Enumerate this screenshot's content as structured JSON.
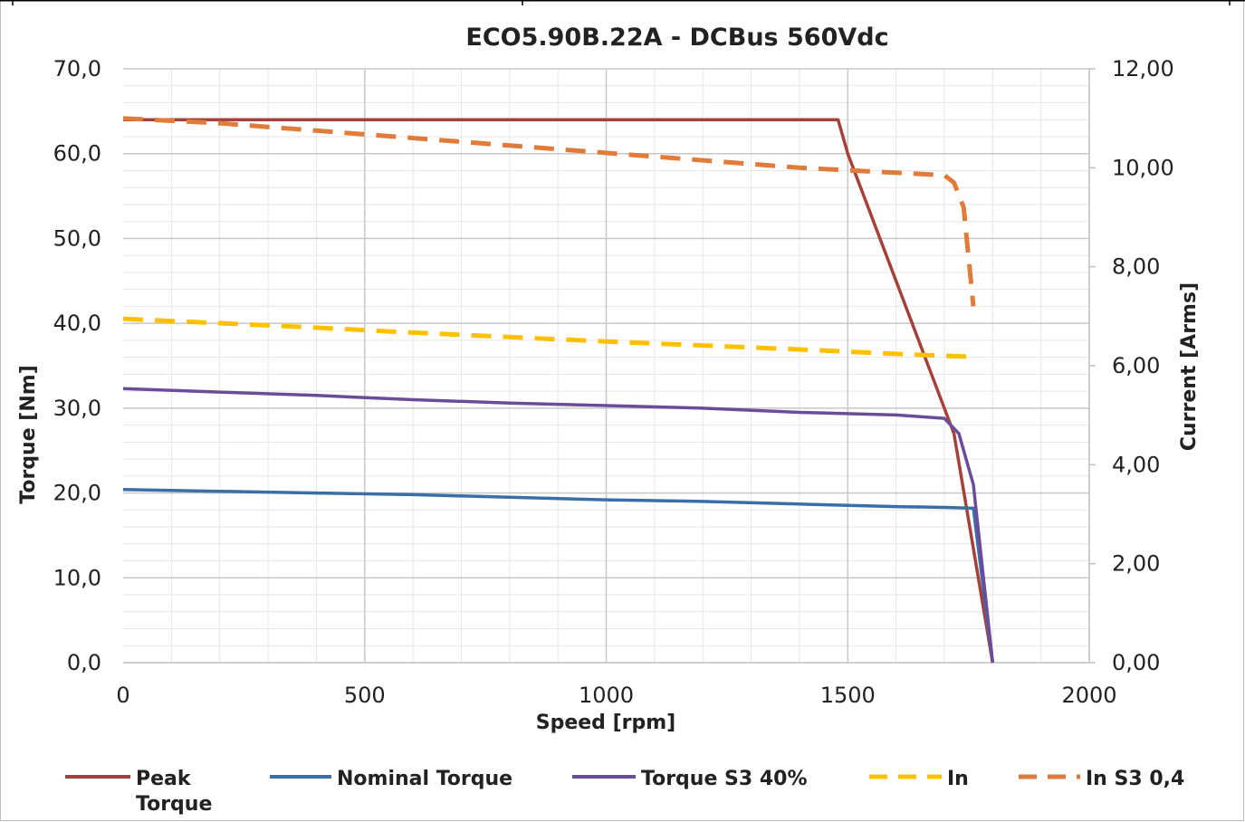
{
  "chart_data": {
    "type": "line",
    "title": "ECO5.90B.22A - DCBus 560Vdc",
    "xlabel": "Speed [rpm]",
    "ylabel": "Torque [Nm]",
    "y2label": "Current [Arms]",
    "xlim": [
      0,
      2000
    ],
    "ylim": [
      0,
      70
    ],
    "y2lim": [
      0,
      12
    ],
    "x_ticks": [
      "0",
      "500",
      "1000",
      "1500",
      "2000"
    ],
    "y_ticks": [
      "0,0",
      "10,0",
      "20,0",
      "30,0",
      "40,0",
      "50,0",
      "60,0",
      "70,0"
    ],
    "y2_ticks": [
      "0,00",
      "2,00",
      "4,00",
      "6,00",
      "8,00",
      "10,00",
      "12,00"
    ],
    "grid": true,
    "legend_position": "bottom",
    "series": [
      {
        "name": "Peak Torque",
        "legend_lines": [
          "Peak",
          "Torque"
        ],
        "axis": "left",
        "color": "#a5403b",
        "dash": "solid",
        "x": [
          0,
          1480,
          1500,
          1720,
          1800
        ],
        "y": [
          64,
          64,
          60,
          27,
          0
        ]
      },
      {
        "name": "Nominal Torque",
        "legend_lines": [
          "Nominal Torque"
        ],
        "axis": "left",
        "color": "#3a6ea8",
        "dash": "solid",
        "x": [
          0,
          200,
          400,
          600,
          800,
          1000,
          1200,
          1400,
          1600,
          1700,
          1760,
          1800
        ],
        "y": [
          20.4,
          20.2,
          20.0,
          19.8,
          19.5,
          19.2,
          19.0,
          18.7,
          18.4,
          18.3,
          18.2,
          0
        ]
      },
      {
        "name": "Torque S3 40%",
        "legend_lines": [
          "Torque S3 40%"
        ],
        "axis": "left",
        "color": "#6b4c9a",
        "dash": "solid",
        "x": [
          0,
          200,
          400,
          600,
          800,
          1000,
          1200,
          1400,
          1600,
          1700,
          1730,
          1760,
          1800
        ],
        "y": [
          32.3,
          31.9,
          31.5,
          31.0,
          30.6,
          30.3,
          30.0,
          29.5,
          29.2,
          28.8,
          27,
          21,
          0
        ]
      },
      {
        "name": "In",
        "legend_lines": [
          "In"
        ],
        "axis": "right",
        "color": "#ffc000",
        "dash": "dashed",
        "x": [
          0,
          200,
          400,
          600,
          800,
          1000,
          1200,
          1400,
          1600,
          1700,
          1760
        ],
        "y": [
          6.95,
          6.86,
          6.77,
          6.67,
          6.58,
          6.49,
          6.41,
          6.33,
          6.24,
          6.2,
          6.18
        ]
      },
      {
        "name": "In S3 0,4",
        "legend_lines": [
          "In S3 0,4"
        ],
        "axis": "right",
        "color": "#e07b39",
        "dash": "dashed",
        "x": [
          0,
          200,
          400,
          600,
          800,
          1000,
          1200,
          1400,
          1500,
          1600,
          1700,
          1720,
          1740,
          1760
        ],
        "y": [
          11.0,
          10.9,
          10.75,
          10.6,
          10.45,
          10.3,
          10.15,
          10.0,
          9.95,
          9.9,
          9.85,
          9.7,
          9.2,
          7.2
        ]
      }
    ]
  }
}
